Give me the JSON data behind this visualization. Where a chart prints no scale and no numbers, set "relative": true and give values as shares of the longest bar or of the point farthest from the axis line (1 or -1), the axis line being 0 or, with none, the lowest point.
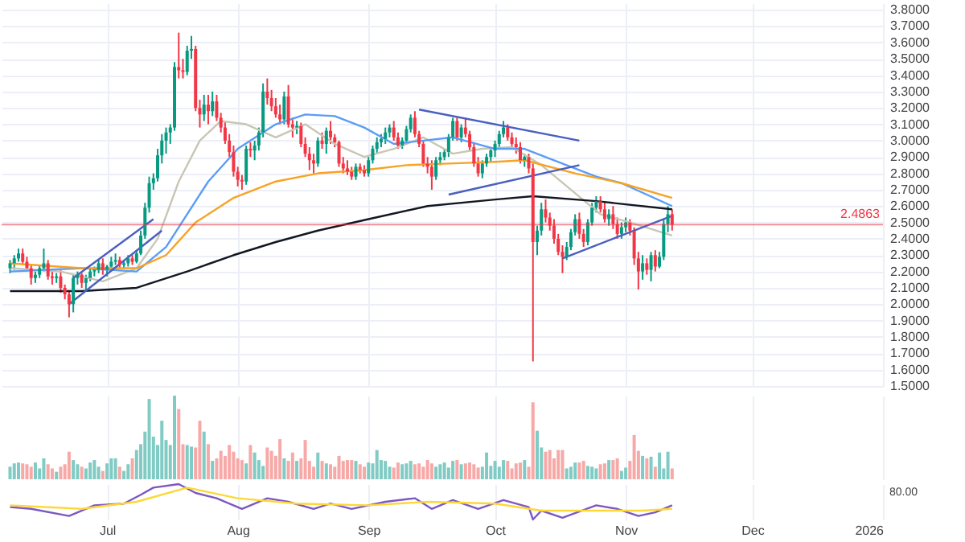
{
  "chart_data": [
    {
      "type": "candlestick",
      "tick_labels": "y",
      "grid": true,
      "xlim": [
        "2025-06-06",
        "2026-01-01"
      ],
      "xticks": [
        {
          "value": "2025-07-01",
          "label": null
        },
        {
          "value": "2025-08-01",
          "label": null
        },
        {
          "value": "2025-09-01",
          "label": null
        },
        {
          "value": "2025-10-01",
          "label": null
        },
        {
          "value": "2025-11-01",
          "label": null
        },
        {
          "value": "2025-12-01",
          "label": null
        },
        {
          "value": "2026-01-01",
          "label": null
        }
      ],
      "ylim": [
        1.5,
        3.84
      ],
      "yticks": [
        {
          "value": 1.5,
          "label": "1.5000"
        },
        {
          "value": 1.6,
          "label": "1.6000"
        },
        {
          "value": 1.7,
          "label": "1.7000"
        },
        {
          "value": 1.8,
          "label": "1.8000"
        },
        {
          "value": 1.9,
          "label": "1.9000"
        },
        {
          "value": 2.0,
          "label": "2.0000"
        },
        {
          "value": 2.1,
          "label": "2.1000"
        },
        {
          "value": 2.2,
          "label": "2.2000"
        },
        {
          "value": 2.3,
          "label": "2.3000"
        },
        {
          "value": 2.4,
          "label": "2.4000"
        },
        {
          "value": 2.5,
          "label": "2.5000"
        },
        {
          "value": 2.6,
          "label": "2.6000"
        },
        {
          "value": 2.7,
          "label": "2.7000"
        },
        {
          "value": 2.8,
          "label": "2.8000"
        },
        {
          "value": 2.9,
          "label": "2.9000"
        },
        {
          "value": 3.0,
          "label": "3.0000"
        },
        {
          "value": 3.1,
          "label": "3.1000"
        },
        {
          "value": 3.2,
          "label": "3.2000"
        },
        {
          "value": 3.3,
          "label": "3.3000"
        },
        {
          "value": 3.4,
          "label": "3.4000"
        },
        {
          "value": 3.5,
          "label": "3.5000"
        },
        {
          "value": 3.6,
          "label": "3.6000"
        },
        {
          "value": 3.7,
          "label": "3.7000"
        },
        {
          "value": 3.8,
          "label": "3.8000"
        }
      ],
      "ref_lines": [
        {
          "axis": "y",
          "value": 2.4863,
          "label": "2.4863",
          "color": "#f23645"
        }
      ],
      "x": [
        "2025-06-08",
        "2025-06-09",
        "2025-06-10",
        "2025-06-11",
        "2025-06-12",
        "2025-06-13",
        "2025-06-14",
        "2025-06-15",
        "2025-06-16",
        "2025-06-17",
        "2025-06-18",
        "2025-06-19",
        "2025-06-20",
        "2025-06-21",
        "2025-06-22",
        "2025-06-23",
        "2025-06-24",
        "2025-06-25",
        "2025-06-26",
        "2025-06-27",
        "2025-06-28",
        "2025-06-29",
        "2025-06-30",
        "2025-07-01",
        "2025-07-02",
        "2025-07-03",
        "2025-07-04",
        "2025-07-05",
        "2025-07-06",
        "2025-07-07",
        "2025-07-08",
        "2025-07-09",
        "2025-07-10",
        "2025-07-11",
        "2025-07-12",
        "2025-07-13",
        "2025-07-14",
        "2025-07-15",
        "2025-07-16",
        "2025-07-17",
        "2025-07-18",
        "2025-07-19",
        "2025-07-20",
        "2025-07-21",
        "2025-07-22",
        "2025-07-23",
        "2025-07-24",
        "2025-07-25",
        "2025-07-26",
        "2025-07-27",
        "2025-07-28",
        "2025-07-29",
        "2025-07-30",
        "2025-07-31",
        "2025-08-01",
        "2025-08-02",
        "2025-08-03",
        "2025-08-04",
        "2025-08-05",
        "2025-08-06",
        "2025-08-07",
        "2025-08-08",
        "2025-08-09",
        "2025-08-10",
        "2025-08-11",
        "2025-08-12",
        "2025-08-13",
        "2025-08-14",
        "2025-08-15",
        "2025-08-16",
        "2025-08-17",
        "2025-08-18",
        "2025-08-19",
        "2025-08-20",
        "2025-08-21",
        "2025-08-22",
        "2025-08-23",
        "2025-08-24",
        "2025-08-25",
        "2025-08-26",
        "2025-08-27",
        "2025-08-28",
        "2025-08-29",
        "2025-08-30",
        "2025-08-31",
        "2025-09-01",
        "2025-09-02",
        "2025-09-03",
        "2025-09-04",
        "2025-09-05",
        "2025-09-06",
        "2025-09-07",
        "2025-09-08",
        "2025-09-09",
        "2025-09-10",
        "2025-09-11",
        "2025-09-12",
        "2025-09-13",
        "2025-09-14",
        "2025-09-15",
        "2025-09-16",
        "2025-09-17",
        "2025-09-18",
        "2025-09-19",
        "2025-09-20",
        "2025-09-21",
        "2025-09-22",
        "2025-09-23",
        "2025-09-24",
        "2025-09-25",
        "2025-09-26",
        "2025-09-27",
        "2025-09-28",
        "2025-09-29",
        "2025-09-30",
        "2025-10-01",
        "2025-10-02",
        "2025-10-03",
        "2025-10-04",
        "2025-10-05",
        "2025-10-06",
        "2025-10-07",
        "2025-10-08",
        "2025-10-09",
        "2025-10-10",
        "2025-10-11",
        "2025-10-12",
        "2025-10-13",
        "2025-10-14",
        "2025-10-15",
        "2025-10-16",
        "2025-10-17",
        "2025-10-18",
        "2025-10-19",
        "2025-10-20",
        "2025-10-21",
        "2025-10-22",
        "2025-10-23",
        "2025-10-24",
        "2025-10-25",
        "2025-10-26",
        "2025-10-27",
        "2025-10-28",
        "2025-10-29",
        "2025-10-30",
        "2025-10-31",
        "2025-11-01",
        "2025-11-02",
        "2025-11-03",
        "2025-11-04",
        "2025-11-05",
        "2025-11-06",
        "2025-11-07",
        "2025-11-08",
        "2025-11-09",
        "2025-11-10",
        "2025-11-11",
        "2025-11-12"
      ],
      "ohlc": [
        [
          2.22,
          2.27,
          2.19,
          2.25
        ],
        [
          2.25,
          2.3,
          2.21,
          2.28
        ],
        [
          2.28,
          2.34,
          2.26,
          2.31
        ],
        [
          2.31,
          2.34,
          2.24,
          2.26
        ],
        [
          2.26,
          2.29,
          2.2,
          2.22
        ],
        [
          2.22,
          2.24,
          2.12,
          2.16
        ],
        [
          2.16,
          2.2,
          2.13,
          2.18
        ],
        [
          2.18,
          2.24,
          2.16,
          2.22
        ],
        [
          2.22,
          2.34,
          2.2,
          2.25
        ],
        [
          2.25,
          2.27,
          2.15,
          2.17
        ],
        [
          2.17,
          2.2,
          2.12,
          2.16
        ],
        [
          2.16,
          2.19,
          2.13,
          2.17
        ],
        [
          2.17,
          2.21,
          2.07,
          2.1
        ],
        [
          2.1,
          2.12,
          2.03,
          2.06
        ],
        [
          2.06,
          2.08,
          1.92,
          2.0
        ],
        [
          2.0,
          2.18,
          1.95,
          2.16
        ],
        [
          2.16,
          2.2,
          2.12,
          2.18
        ],
        [
          2.18,
          2.19,
          2.1,
          2.13
        ],
        [
          2.13,
          2.18,
          2.09,
          2.16
        ],
        [
          2.16,
          2.22,
          2.14,
          2.2
        ],
        [
          2.2,
          2.23,
          2.17,
          2.21
        ],
        [
          2.21,
          2.27,
          2.19,
          2.25
        ],
        [
          2.25,
          2.28,
          2.18,
          2.21
        ],
        [
          2.21,
          2.24,
          2.17,
          2.23
        ],
        [
          2.23,
          2.29,
          2.2,
          2.26
        ],
        [
          2.26,
          2.31,
          2.24,
          2.27
        ],
        [
          2.27,
          2.29,
          2.22,
          2.24
        ],
        [
          2.24,
          2.27,
          2.22,
          2.25
        ],
        [
          2.25,
          2.3,
          2.23,
          2.28
        ],
        [
          2.28,
          2.3,
          2.24,
          2.26
        ],
        [
          2.26,
          2.33,
          2.25,
          2.31
        ],
        [
          2.31,
          2.45,
          2.3,
          2.42
        ],
        [
          2.42,
          2.62,
          2.4,
          2.59
        ],
        [
          2.59,
          2.78,
          2.56,
          2.74
        ],
        [
          2.74,
          2.8,
          2.7,
          2.77
        ],
        [
          2.77,
          2.95,
          2.75,
          2.91
        ],
        [
          2.91,
          3.04,
          2.86,
          3.0
        ],
        [
          3.0,
          3.08,
          2.92,
          3.05
        ],
        [
          3.05,
          3.1,
          2.98,
          3.08
        ],
        [
          3.08,
          3.48,
          3.06,
          3.45
        ],
        [
          3.45,
          3.66,
          3.38,
          3.43
        ],
        [
          3.43,
          3.5,
          3.38,
          3.42
        ],
        [
          3.42,
          3.58,
          3.4,
          3.55
        ],
        [
          3.55,
          3.64,
          3.5,
          3.56
        ],
        [
          3.56,
          3.58,
          3.18,
          3.2
        ],
        [
          3.2,
          3.25,
          3.08,
          3.16
        ],
        [
          3.16,
          3.28,
          3.12,
          3.22
        ],
        [
          3.22,
          3.28,
          3.1,
          3.18
        ],
        [
          3.18,
          3.3,
          3.15,
          3.24
        ],
        [
          3.24,
          3.28,
          3.12,
          3.14
        ],
        [
          3.14,
          3.17,
          3.05,
          3.08
        ],
        [
          3.08,
          3.12,
          2.98,
          3.0
        ],
        [
          3.0,
          3.04,
          2.9,
          2.93
        ],
        [
          2.93,
          2.97,
          2.78,
          2.81
        ],
        [
          2.81,
          2.84,
          2.72,
          2.76
        ],
        [
          2.76,
          2.79,
          2.7,
          2.75
        ],
        [
          2.75,
          2.97,
          2.73,
          2.95
        ],
        [
          2.95,
          2.99,
          2.9,
          2.94
        ],
        [
          2.94,
          3.0,
          2.88,
          2.97
        ],
        [
          2.97,
          3.08,
          2.94,
          3.05
        ],
        [
          3.05,
          3.35,
          3.02,
          3.3
        ],
        [
          3.3,
          3.38,
          3.22,
          3.26
        ],
        [
          3.26,
          3.31,
          3.18,
          3.21
        ],
        [
          3.21,
          3.26,
          3.14,
          3.16
        ],
        [
          3.16,
          3.22,
          3.1,
          3.13
        ],
        [
          3.13,
          3.3,
          3.1,
          3.27
        ],
        [
          3.27,
          3.34,
          3.08,
          3.1
        ],
        [
          3.1,
          3.14,
          3.02,
          3.08
        ],
        [
          3.08,
          3.12,
          3.04,
          3.09
        ],
        [
          3.09,
          3.11,
          2.96,
          2.98
        ],
        [
          2.98,
          3.02,
          2.9,
          2.92
        ],
        [
          2.92,
          2.96,
          2.82,
          2.88
        ],
        [
          2.88,
          2.92,
          2.8,
          2.86
        ],
        [
          2.86,
          3.02,
          2.84,
          3.0
        ],
        [
          3.0,
          3.05,
          2.95,
          2.98
        ],
        [
          2.98,
          3.08,
          2.92,
          3.06
        ],
        [
          3.06,
          3.12,
          2.98,
          3.02
        ],
        [
          3.02,
          3.04,
          2.96,
          2.99
        ],
        [
          2.99,
          3.0,
          2.84,
          2.86
        ],
        [
          2.86,
          2.9,
          2.8,
          2.83
        ],
        [
          2.83,
          2.88,
          2.79,
          2.81
        ],
        [
          2.81,
          2.84,
          2.76,
          2.78
        ],
        [
          2.78,
          2.86,
          2.76,
          2.84
        ],
        [
          2.84,
          2.86,
          2.8,
          2.82
        ],
        [
          2.82,
          2.85,
          2.78,
          2.8
        ],
        [
          2.8,
          2.9,
          2.78,
          2.88
        ],
        [
          2.88,
          2.97,
          2.86,
          2.95
        ],
        [
          2.95,
          3.02,
          2.92,
          2.99
        ],
        [
          2.99,
          3.04,
          2.96,
          3.01
        ],
        [
          3.01,
          3.08,
          2.98,
          3.05
        ],
        [
          3.05,
          3.1,
          3.02,
          3.08
        ],
        [
          3.08,
          3.12,
          3.0,
          3.02
        ],
        [
          3.02,
          3.05,
          2.95,
          2.97
        ],
        [
          2.97,
          3.02,
          2.95,
          3.0
        ],
        [
          3.0,
          3.09,
          2.98,
          3.07
        ],
        [
          3.07,
          3.16,
          3.05,
          3.14
        ],
        [
          3.14,
          3.18,
          3.02,
          3.04
        ],
        [
          3.04,
          3.06,
          2.96,
          2.98
        ],
        [
          2.98,
          3.0,
          2.84,
          2.86
        ],
        [
          2.86,
          2.9,
          2.8,
          2.84
        ],
        [
          2.84,
          2.88,
          2.7,
          2.78
        ],
        [
          2.78,
          2.9,
          2.76,
          2.88
        ],
        [
          2.88,
          2.93,
          2.85,
          2.9
        ],
        [
          2.9,
          2.95,
          2.88,
          2.93
        ],
        [
          2.93,
          3.04,
          2.9,
          3.02
        ],
        [
          3.02,
          3.14,
          3.0,
          3.12
        ],
        [
          3.12,
          3.14,
          3.0,
          3.02
        ],
        [
          3.02,
          3.1,
          2.99,
          3.08
        ],
        [
          3.08,
          3.14,
          3.02,
          3.04
        ],
        [
          3.04,
          3.06,
          2.94,
          2.96
        ],
        [
          2.96,
          2.99,
          2.84,
          2.86
        ],
        [
          2.86,
          2.9,
          2.78,
          2.8
        ],
        [
          2.8,
          2.88,
          2.77,
          2.86
        ],
        [
          2.86,
          2.92,
          2.84,
          2.9
        ],
        [
          2.9,
          2.96,
          2.87,
          2.94
        ],
        [
          2.94,
          3.0,
          2.9,
          2.98
        ],
        [
          2.98,
          3.06,
          2.95,
          3.04
        ],
        [
          3.04,
          3.12,
          3.02,
          3.08
        ],
        [
          3.08,
          3.1,
          3.0,
          3.02
        ],
        [
          3.02,
          3.05,
          2.96,
          2.98
        ],
        [
          2.98,
          3.02,
          2.92,
          2.96
        ],
        [
          2.96,
          2.99,
          2.86,
          2.88
        ],
        [
          2.88,
          2.92,
          2.84,
          2.9
        ],
        [
          2.9,
          2.92,
          2.8,
          2.83
        ],
        [
          2.83,
          2.86,
          1.65,
          2.38
        ],
        [
          2.38,
          2.48,
          2.3,
          2.45
        ],
        [
          2.45,
          2.62,
          2.42,
          2.58
        ],
        [
          2.58,
          2.64,
          2.5,
          2.53
        ],
        [
          2.53,
          2.56,
          2.45,
          2.48
        ],
        [
          2.48,
          2.52,
          2.37,
          2.4
        ],
        [
          2.4,
          2.43,
          2.3,
          2.32
        ],
        [
          2.32,
          2.36,
          2.19,
          2.29
        ],
        [
          2.29,
          2.38,
          2.27,
          2.35
        ],
        [
          2.35,
          2.46,
          2.33,
          2.44
        ],
        [
          2.44,
          2.55,
          2.42,
          2.52
        ],
        [
          2.52,
          2.56,
          2.4,
          2.43
        ],
        [
          2.43,
          2.46,
          2.35,
          2.38
        ],
        [
          2.38,
          2.52,
          2.36,
          2.5
        ],
        [
          2.5,
          2.62,
          2.48,
          2.59
        ],
        [
          2.59,
          2.66,
          2.56,
          2.63
        ],
        [
          2.63,
          2.66,
          2.56,
          2.58
        ],
        [
          2.58,
          2.62,
          2.5,
          2.52
        ],
        [
          2.52,
          2.58,
          2.48,
          2.55
        ],
        [
          2.55,
          2.6,
          2.46,
          2.49
        ],
        [
          2.49,
          2.53,
          2.4,
          2.43
        ],
        [
          2.43,
          2.5,
          2.4,
          2.47
        ],
        [
          2.47,
          2.53,
          2.44,
          2.5
        ],
        [
          2.5,
          2.52,
          2.42,
          2.45
        ],
        [
          2.45,
          2.47,
          2.24,
          2.28
        ],
        [
          2.28,
          2.32,
          2.09,
          2.2
        ],
        [
          2.2,
          2.3,
          2.15,
          2.25
        ],
        [
          2.25,
          2.28,
          2.18,
          2.21
        ],
        [
          2.21,
          2.32,
          2.14,
          2.3
        ],
        [
          2.3,
          2.33,
          2.2,
          2.23
        ],
        [
          2.23,
          2.32,
          2.22,
          2.29
        ],
        [
          2.29,
          2.52,
          2.27,
          2.49
        ],
        [
          2.49,
          2.6,
          2.44,
          2.55
        ],
        [
          2.55,
          2.58,
          2.45,
          2.4863
        ]
      ],
      "colors": [
        "#089981",
        "#089981",
        "#089981",
        "#f23645",
        "#f23645",
        "#f23645",
        "#089981",
        "#089981",
        "#089981",
        "#f23645",
        "#f23645",
        "#089981",
        "#f23645",
        "#f23645",
        "#f23645",
        "#089981",
        "#089981",
        "#f23645",
        "#089981",
        "#089981",
        "#089981",
        "#089981",
        "#f23645",
        "#089981",
        "#089981",
        "#089981",
        "#f23645",
        "#089981",
        "#089981",
        "#f23645",
        "#089981",
        "#089981",
        "#089981",
        "#089981",
        "#089981",
        "#089981",
        "#089981",
        "#089981",
        "#089981",
        "#089981",
        "#f23645",
        "#f23645",
        "#089981",
        "#089981",
        "#f23645",
        "#f23645",
        "#089981",
        "#f23645",
        "#089981",
        "#f23645",
        "#f23645",
        "#f23645",
        "#f23645",
        "#f23645",
        "#f23645",
        "#f23645",
        "#089981",
        "#f23645",
        "#089981",
        "#089981",
        "#089981",
        "#f23645",
        "#f23645",
        "#f23645",
        "#f23645",
        "#089981",
        "#f23645",
        "#f23645",
        "#089981",
        "#f23645",
        "#f23645",
        "#f23645",
        "#f23645",
        "#089981",
        "#f23645",
        "#089981",
        "#f23645",
        "#f23645",
        "#f23645",
        "#f23645",
        "#f23645",
        "#f23645",
        "#089981",
        "#f23645",
        "#f23645",
        "#089981",
        "#089981",
        "#089981",
        "#089981",
        "#089981",
        "#089981",
        "#f23645",
        "#f23645",
        "#089981",
        "#089981",
        "#089981",
        "#f23645",
        "#f23645",
        "#f23645",
        "#f23645",
        "#f23645",
        "#089981",
        "#089981",
        "#089981",
        "#089981",
        "#089981",
        "#f23645",
        "#089981",
        "#f23645",
        "#f23645",
        "#f23645",
        "#f23645",
        "#089981",
        "#089981",
        "#089981",
        "#089981",
        "#089981",
        "#089981",
        "#f23645",
        "#f23645",
        "#f23645",
        "#f23645",
        "#089981",
        "#f23645",
        "#f23645",
        "#089981",
        "#089981",
        "#f23645",
        "#f23645",
        "#f23645",
        "#f23645",
        "#f23645",
        "#089981",
        "#089981",
        "#089981",
        "#f23645",
        "#f23645",
        "#089981",
        "#089981",
        "#089981",
        "#f23645",
        "#f23645",
        "#089981",
        "#f23645",
        "#f23645",
        "#089981",
        "#089981",
        "#f23645",
        "#f23645",
        "#f23645",
        "#089981",
        "#f23645",
        "#089981",
        "#f23645",
        "#089981",
        "#089981",
        "#089981",
        "#f23645"
      ],
      "series": [
        {
          "type": "line",
          "color": "#c9c6b4",
          "x": [
            "2025-06-08",
            "2025-06-20",
            "2025-06-30",
            "2025-07-08",
            "2025-07-13",
            "2025-07-18",
            "2025-07-23",
            "2025-07-28",
            "2025-08-03",
            "2025-08-10",
            "2025-08-17",
            "2025-08-24",
            "2025-08-31",
            "2025-09-07",
            "2025-09-14",
            "2025-09-21",
            "2025-09-28",
            "2025-10-05",
            "2025-10-12",
            "2025-10-19",
            "2025-10-26",
            "2025-11-02",
            "2025-11-12"
          ],
          "values": [
            2.22,
            2.2,
            2.14,
            2.22,
            2.4,
            2.75,
            3.0,
            3.12,
            3.1,
            3.02,
            3.1,
            2.98,
            2.9,
            2.95,
            3.02,
            2.92,
            2.95,
            2.96,
            2.85,
            2.7,
            2.55,
            2.5,
            2.42
          ]
        },
        {
          "type": "line",
          "color": "#5b9cf6",
          "x": [
            "2025-06-08",
            "2025-06-25",
            "2025-07-08",
            "2025-07-15",
            "2025-07-25",
            "2025-08-01",
            "2025-08-10",
            "2025-08-17",
            "2025-08-24",
            "2025-08-31",
            "2025-09-07",
            "2025-09-14",
            "2025-09-21",
            "2025-10-01",
            "2025-10-08",
            "2025-10-15",
            "2025-10-25",
            "2025-10-31",
            "2025-11-12"
          ],
          "values": [
            2.2,
            2.22,
            2.2,
            2.35,
            2.75,
            2.95,
            3.1,
            3.16,
            3.15,
            3.08,
            2.98,
            3.0,
            3.02,
            2.95,
            2.95,
            2.88,
            2.78,
            2.74,
            2.6
          ]
        },
        {
          "type": "line",
          "color": "#f7a325",
          "x": [
            "2025-06-08",
            "2025-06-25",
            "2025-07-08",
            "2025-07-15",
            "2025-07-22",
            "2025-07-31",
            "2025-08-10",
            "2025-08-20",
            "2025-08-31",
            "2025-09-10",
            "2025-09-20",
            "2025-10-01",
            "2025-10-08",
            "2025-10-20",
            "2025-10-31",
            "2025-11-12"
          ],
          "values": [
            2.25,
            2.22,
            2.22,
            2.3,
            2.5,
            2.65,
            2.75,
            2.8,
            2.82,
            2.85,
            2.86,
            2.87,
            2.88,
            2.8,
            2.74,
            2.65
          ]
        },
        {
          "type": "line",
          "color": "#131722",
          "x": [
            "2025-06-08",
            "2025-06-25",
            "2025-07-08",
            "2025-07-20",
            "2025-07-31",
            "2025-08-10",
            "2025-08-20",
            "2025-09-01",
            "2025-09-15",
            "2025-10-01",
            "2025-10-10",
            "2025-10-25",
            "2025-11-12"
          ],
          "values": [
            2.08,
            2.08,
            2.1,
            2.2,
            2.3,
            2.38,
            2.45,
            2.52,
            2.6,
            2.64,
            2.66,
            2.63,
            2.58
          ]
        },
        {
          "type": "line",
          "color": "#4a5fc1",
          "x": [
            "2025-06-22",
            "2025-07-14"
          ],
          "values": [
            2.0,
            2.45
          ]
        },
        {
          "type": "line",
          "color": "#4a5fc1",
          "x": [
            "2025-06-23",
            "2025-07-12"
          ],
          "values": [
            2.16,
            2.52
          ]
        },
        {
          "type": "line",
          "color": "#4a5fc1",
          "x": [
            "2025-09-13",
            "2025-10-21"
          ],
          "values": [
            3.19,
            3.0
          ]
        },
        {
          "type": "line",
          "color": "#4a5fc1",
          "x": [
            "2025-09-20",
            "2025-10-21"
          ],
          "values": [
            2.67,
            2.85
          ]
        },
        {
          "type": "line",
          "color": "#4a5fc1",
          "x": [
            "2025-10-17",
            "2025-11-12"
          ],
          "values": [
            2.28,
            2.54
          ]
        }
      ]
    },
    {
      "type": "bar",
      "relative": true,
      "tick_labels": false,
      "grid": "x",
      "xlim": [
        "2025-06-06",
        "2026-01-01"
      ],
      "xticks": [
        {
          "value": "2025-07-01",
          "label": null
        },
        {
          "value": "2025-08-01",
          "label": null
        },
        {
          "value": "2025-09-01",
          "label": null
        },
        {
          "value": "2025-10-01",
          "label": null
        },
        {
          "value": "2025-11-01",
          "label": null
        },
        {
          "value": "2025-12-01",
          "label": null
        },
        {
          "value": "2026-01-01",
          "label": null
        }
      ],
      "x": [
        "2025-06-08",
        "2025-06-09",
        "2025-06-10",
        "2025-06-11",
        "2025-06-12",
        "2025-06-13",
        "2025-06-14",
        "2025-06-15",
        "2025-06-16",
        "2025-06-17",
        "2025-06-18",
        "2025-06-19",
        "2025-06-20",
        "2025-06-21",
        "2025-06-22",
        "2025-06-23",
        "2025-06-24",
        "2025-06-25",
        "2025-06-26",
        "2025-06-27",
        "2025-06-28",
        "2025-06-29",
        "2025-06-30",
        "2025-07-01",
        "2025-07-02",
        "2025-07-03",
        "2025-07-04",
        "2025-07-05",
        "2025-07-06",
        "2025-07-07",
        "2025-07-08",
        "2025-07-09",
        "2025-07-10",
        "2025-07-11",
        "2025-07-12",
        "2025-07-13",
        "2025-07-14",
        "2025-07-15",
        "2025-07-16",
        "2025-07-17",
        "2025-07-18",
        "2025-07-19",
        "2025-07-20",
        "2025-07-21",
        "2025-07-22",
        "2025-07-23",
        "2025-07-24",
        "2025-07-25",
        "2025-07-26",
        "2025-07-27",
        "2025-07-28",
        "2025-07-29",
        "2025-07-30",
        "2025-07-31",
        "2025-08-01",
        "2025-08-02",
        "2025-08-03",
        "2025-08-04",
        "2025-08-05",
        "2025-08-06",
        "2025-08-07",
        "2025-08-08",
        "2025-08-09",
        "2025-08-10",
        "2025-08-11",
        "2025-08-12",
        "2025-08-13",
        "2025-08-14",
        "2025-08-15",
        "2025-08-16",
        "2025-08-17",
        "2025-08-18",
        "2025-08-19",
        "2025-08-20",
        "2025-08-21",
        "2025-08-22",
        "2025-08-23",
        "2025-08-24",
        "2025-08-25",
        "2025-08-26",
        "2025-08-27",
        "2025-08-28",
        "2025-08-29",
        "2025-08-30",
        "2025-08-31",
        "2025-09-01",
        "2025-09-02",
        "2025-09-03",
        "2025-09-04",
        "2025-09-05",
        "2025-09-06",
        "2025-09-07",
        "2025-09-08",
        "2025-09-09",
        "2025-09-10",
        "2025-09-11",
        "2025-09-12",
        "2025-09-13",
        "2025-09-14",
        "2025-09-15",
        "2025-09-16",
        "2025-09-17",
        "2025-09-18",
        "2025-09-19",
        "2025-09-20",
        "2025-09-21",
        "2025-09-22",
        "2025-09-23",
        "2025-09-24",
        "2025-09-25",
        "2025-09-26",
        "2025-09-27",
        "2025-09-28",
        "2025-09-29",
        "2025-09-30",
        "2025-10-01",
        "2025-10-02",
        "2025-10-03",
        "2025-10-04",
        "2025-10-05",
        "2025-10-06",
        "2025-10-07",
        "2025-10-08",
        "2025-10-09",
        "2025-10-10",
        "2025-10-11",
        "2025-10-12",
        "2025-10-13",
        "2025-10-14",
        "2025-10-15",
        "2025-10-16",
        "2025-10-17",
        "2025-10-18",
        "2025-10-19",
        "2025-10-20",
        "2025-10-21",
        "2025-10-22",
        "2025-10-23",
        "2025-10-24",
        "2025-10-25",
        "2025-10-26",
        "2025-10-27",
        "2025-10-28",
        "2025-10-29",
        "2025-10-30",
        "2025-10-31",
        "2025-11-01",
        "2025-11-02",
        "2025-11-03",
        "2025-11-04",
        "2025-11-05",
        "2025-11-06",
        "2025-11-07",
        "2025-11-08",
        "2025-11-09",
        "2025-11-10",
        "2025-11-11",
        "2025-11-12"
      ],
      "values": [
        0.15,
        0.19,
        0.2,
        0.19,
        0.18,
        0.15,
        0.2,
        0.13,
        0.25,
        0.18,
        0.13,
        0.09,
        0.15,
        0.18,
        0.33,
        0.23,
        0.18,
        0.15,
        0.13,
        0.2,
        0.23,
        0.15,
        0.1,
        0.19,
        0.25,
        0.25,
        0.15,
        0.1,
        0.18,
        0.25,
        0.35,
        0.42,
        0.57,
        0.96,
        0.51,
        0.41,
        0.7,
        0.47,
        0.41,
        1,
        0.84,
        0.42,
        0.41,
        0.39,
        0.38,
        0.7,
        0.57,
        0.42,
        0.22,
        0.25,
        0.34,
        0.28,
        0.41,
        0.33,
        0.25,
        0.23,
        0.19,
        0.41,
        0.32,
        0.23,
        0.16,
        0.38,
        0.34,
        0.28,
        0.48,
        0.25,
        0.22,
        0.32,
        0.22,
        0.25,
        0.47,
        0.22,
        0.15,
        0.32,
        0.22,
        0.19,
        0.18,
        0.15,
        0.28,
        0.22,
        0.23,
        0.23,
        0.22,
        0.18,
        0.15,
        0.2,
        0.19,
        0.35,
        0.23,
        0.22,
        0.15,
        0.14,
        0.2,
        0.18,
        0.19,
        0.22,
        0.18,
        0.19,
        0.15,
        0.23,
        0.19,
        0.15,
        0.18,
        0.2,
        0.14,
        0.22,
        0.23,
        0.18,
        0.19,
        0.2,
        0.18,
        0.14,
        0.15,
        0.32,
        0.16,
        0.22,
        0.15,
        0.23,
        0.22,
        0.13,
        0.19,
        0.2,
        0.23,
        0.15,
        0.92,
        0.58,
        0.38,
        0.33,
        0.35,
        0.25,
        0.35,
        0.35,
        0.13,
        0.15,
        0.2,
        0.2,
        0.22,
        0.16,
        0.15,
        0.13,
        0.18,
        0.19,
        0.23,
        0.23,
        0.25,
        0.1,
        0.14,
        0.22,
        0.53,
        0.34,
        0.28,
        0.25,
        0.27,
        0.15,
        0.32,
        0.13,
        0.33,
        0.13
      ],
      "colors": [
        "#80cbc4",
        "#80cbc4",
        "#80cbc4",
        "#f7a9a7",
        "#f7a9a7",
        "#f7a9a7",
        "#80cbc4",
        "#80cbc4",
        "#80cbc4",
        "#f7a9a7",
        "#f7a9a7",
        "#80cbc4",
        "#f7a9a7",
        "#f7a9a7",
        "#f7a9a7",
        "#80cbc4",
        "#80cbc4",
        "#f7a9a7",
        "#80cbc4",
        "#80cbc4",
        "#80cbc4",
        "#80cbc4",
        "#f7a9a7",
        "#80cbc4",
        "#80cbc4",
        "#80cbc4",
        "#f7a9a7",
        "#80cbc4",
        "#80cbc4",
        "#f7a9a7",
        "#80cbc4",
        "#80cbc4",
        "#80cbc4",
        "#80cbc4",
        "#80cbc4",
        "#80cbc4",
        "#80cbc4",
        "#80cbc4",
        "#80cbc4",
        "#80cbc4",
        "#f7a9a7",
        "#f7a9a7",
        "#80cbc4",
        "#80cbc4",
        "#f7a9a7",
        "#f7a9a7",
        "#80cbc4",
        "#f7a9a7",
        "#80cbc4",
        "#f7a9a7",
        "#f7a9a7",
        "#f7a9a7",
        "#f7a9a7",
        "#f7a9a7",
        "#f7a9a7",
        "#f7a9a7",
        "#80cbc4",
        "#f7a9a7",
        "#80cbc4",
        "#80cbc4",
        "#80cbc4",
        "#f7a9a7",
        "#f7a9a7",
        "#f7a9a7",
        "#f7a9a7",
        "#80cbc4",
        "#f7a9a7",
        "#f7a9a7",
        "#80cbc4",
        "#f7a9a7",
        "#f7a9a7",
        "#f7a9a7",
        "#f7a9a7",
        "#80cbc4",
        "#f7a9a7",
        "#80cbc4",
        "#f7a9a7",
        "#f7a9a7",
        "#f7a9a7",
        "#f7a9a7",
        "#f7a9a7",
        "#f7a9a7",
        "#80cbc4",
        "#f7a9a7",
        "#f7a9a7",
        "#80cbc4",
        "#80cbc4",
        "#80cbc4",
        "#80cbc4",
        "#80cbc4",
        "#80cbc4",
        "#f7a9a7",
        "#f7a9a7",
        "#80cbc4",
        "#80cbc4",
        "#80cbc4",
        "#f7a9a7",
        "#f7a9a7",
        "#f7a9a7",
        "#f7a9a7",
        "#f7a9a7",
        "#80cbc4",
        "#80cbc4",
        "#80cbc4",
        "#80cbc4",
        "#80cbc4",
        "#f7a9a7",
        "#80cbc4",
        "#f7a9a7",
        "#f7a9a7",
        "#f7a9a7",
        "#f7a9a7",
        "#80cbc4",
        "#80cbc4",
        "#80cbc4",
        "#80cbc4",
        "#80cbc4",
        "#80cbc4",
        "#f7a9a7",
        "#f7a9a7",
        "#f7a9a7",
        "#f7a9a7",
        "#80cbc4",
        "#f7a9a7",
        "#f7a9a7",
        "#80cbc4",
        "#80cbc4",
        "#f7a9a7",
        "#f7a9a7",
        "#f7a9a7",
        "#f7a9a7",
        "#f7a9a7",
        "#80cbc4",
        "#80cbc4",
        "#80cbc4",
        "#f7a9a7",
        "#f7a9a7",
        "#80cbc4",
        "#80cbc4",
        "#80cbc4",
        "#f7a9a7",
        "#f7a9a7",
        "#80cbc4",
        "#f7a9a7",
        "#f7a9a7",
        "#80cbc4",
        "#80cbc4",
        "#f7a9a7",
        "#f7a9a7",
        "#f7a9a7",
        "#80cbc4",
        "#f7a9a7",
        "#80cbc4",
        "#f7a9a7",
        "#80cbc4",
        "#80cbc4",
        "#80cbc4",
        "#f7a9a7"
      ]
    },
    {
      "type": "line",
      "relative": true,
      "tick_labels": "x",
      "grid": "x",
      "xlim": [
        "2025-06-06",
        "2026-01-01"
      ],
      "xticks": [
        {
          "value": "2025-07-01",
          "label": "Jul"
        },
        {
          "value": "2025-08-01",
          "label": "Aug"
        },
        {
          "value": "2025-09-01",
          "label": "Sep"
        },
        {
          "value": "2025-10-01",
          "label": "Oct"
        },
        {
          "value": "2025-11-01",
          "label": "Nov"
        },
        {
          "value": "2025-12-01",
          "label": "Dec"
        },
        {
          "value": "2026-01-01",
          "label": "2026"
        }
      ],
      "annotations": [
        "80.00"
      ],
      "series": [
        {
          "color": "#7e57c2",
          "x": [
            "2025-06-08",
            "2025-06-13",
            "2025-06-22",
            "2025-06-28",
            "2025-07-05",
            "2025-07-09",
            "2025-07-12",
            "2025-07-18",
            "2025-07-22",
            "2025-07-27",
            "2025-08-02",
            "2025-08-08",
            "2025-08-13",
            "2025-08-19",
            "2025-08-23",
            "2025-08-28",
            "2025-09-05",
            "2025-09-12",
            "2025-09-16",
            "2025-09-21",
            "2025-09-27",
            "2025-10-03",
            "2025-10-09",
            "2025-10-10",
            "2025-10-12",
            "2025-10-17",
            "2025-10-25",
            "2025-10-30",
            "2025-11-04",
            "2025-11-08",
            "2025-11-12"
          ],
          "values": [
            0.35,
            0.3,
            0.1,
            0.4,
            0.45,
            0.7,
            0.9,
            1,
            0.75,
            0.6,
            0.3,
            0.6,
            0.5,
            0.3,
            0.45,
            0.3,
            0.5,
            0.6,
            0.3,
            0.55,
            0.3,
            0.55,
            0.35,
            0,
            0.25,
            0.05,
            0.4,
            0.3,
            0.1,
            0.2,
            0.4
          ]
        },
        {
          "color": "#fdd835",
          "x": [
            "2025-06-08",
            "2025-06-25",
            "2025-07-08",
            "2025-07-20",
            "2025-08-01",
            "2025-08-15",
            "2025-09-01",
            "2025-09-15",
            "2025-10-01",
            "2025-10-12",
            "2025-10-25",
            "2025-11-05",
            "2025-11-12"
          ],
          "values": [
            0.4,
            0.3,
            0.5,
            0.9,
            0.6,
            0.45,
            0.4,
            0.5,
            0.45,
            0.25,
            0.25,
            0.25,
            0.3
          ]
        }
      ]
    }
  ]
}
